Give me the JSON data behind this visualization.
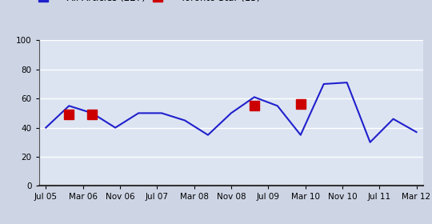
{
  "x_labels": [
    "Jul 05",
    "Mar 06",
    "Nov 06",
    "Jul 07",
    "Mar 08",
    "Nov 08",
    "Jul 09",
    "Mar 10",
    "Nov 10",
    "Jul 11",
    "Mar 12"
  ],
  "blue_x": [
    0,
    1,
    2,
    3,
    4,
    5,
    6,
    7,
    8,
    9,
    10,
    11,
    12,
    13,
    14,
    15,
    16
  ],
  "blue_y": [
    40,
    55,
    50,
    40,
    50,
    50,
    45,
    35,
    50,
    61,
    55,
    35,
    70,
    71,
    30,
    46,
    37
  ],
  "red_x": [
    1,
    2,
    9,
    11
  ],
  "red_y": [
    49,
    49,
    55,
    56
  ],
  "ylim": [
    0,
    100
  ],
  "yticks": [
    0,
    20,
    40,
    60,
    80,
    100
  ],
  "blue_color": "#2020cc",
  "red_color": "#cc0000",
  "bg_color": "#cdd5e5",
  "plot_bg_color": "#dce4f2",
  "grid_color": "#ffffff",
  "line_width": 1.5,
  "marker_size": 9,
  "tick_fontsize": 7.5,
  "legend_fontsize": 8.5,
  "n_ticks": 11,
  "xlim_min": -0.3,
  "xlim_max": 16.3
}
